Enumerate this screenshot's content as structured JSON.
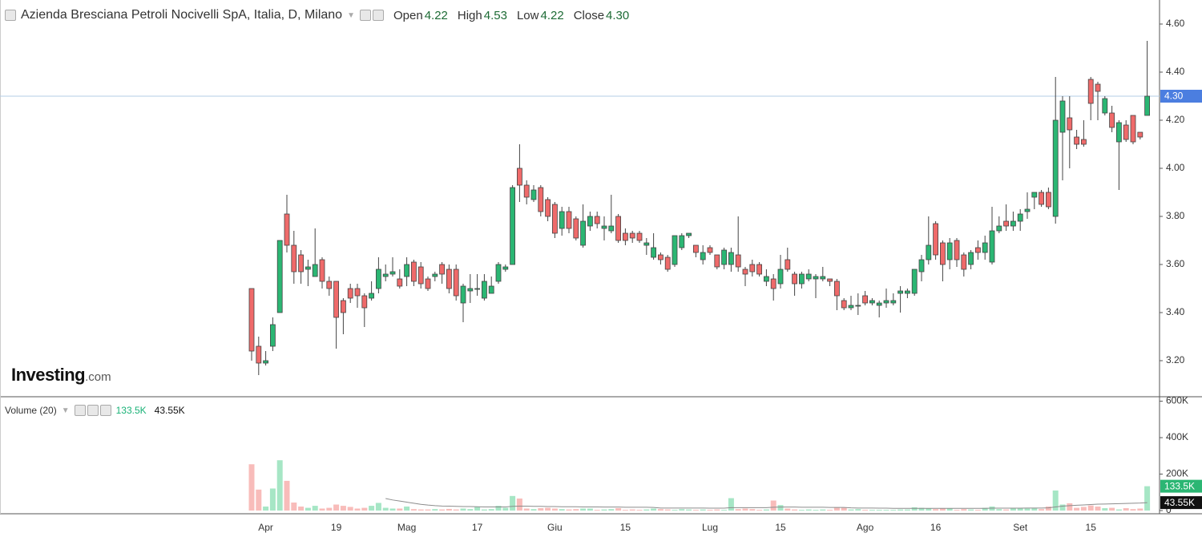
{
  "chart_data": {
    "type": "candlestick",
    "title": "Azienda Bresciana Petroli Nocivelli SpA, Italia, D, Milano",
    "ohlc_labels": [
      "Open",
      "High",
      "Low",
      "Close"
    ],
    "ohlc_values": [
      {
        "value": 4.22,
        "label": "4.22"
      },
      {
        "value": 4.53,
        "label": "4.53"
      },
      {
        "value": 4.22,
        "label": "4.22"
      },
      {
        "value": 4.3,
        "label": "4.30"
      }
    ],
    "watermark": "Investing",
    "watermark_suffix": ".com",
    "categories": [
      null,
      null,
      "Apr",
      null,
      null,
      null,
      null,
      null,
      null,
      null,
      null,
      null,
      "19",
      null,
      null,
      null,
      null,
      null,
      null,
      null,
      null,
      null,
      "Mag",
      null,
      null,
      null,
      null,
      null,
      null,
      null,
      null,
      null,
      "17",
      null,
      null,
      null,
      null,
      null,
      null,
      null,
      null,
      null,
      null,
      "Giu",
      null,
      null,
      null,
      null,
      null,
      null,
      null,
      null,
      null,
      "15",
      null,
      null,
      null,
      null,
      null,
      null,
      null,
      null,
      null,
      null,
      null,
      "Lug",
      null,
      null,
      null,
      null,
      null,
      null,
      null,
      null,
      null,
      "15",
      null,
      null,
      null,
      null,
      null,
      null,
      null,
      null,
      null,
      null,
      null,
      "Ago",
      null,
      null,
      null,
      null,
      null,
      null,
      null,
      null,
      null,
      "16",
      null,
      null,
      null,
      null,
      null,
      null,
      null,
      null,
      null,
      null,
      null,
      "Set",
      null,
      null,
      null,
      null,
      null,
      null,
      null,
      null,
      null,
      "15",
      null,
      null,
      null,
      null,
      null,
      null,
      null,
      null
    ],
    "open": [
      3.5,
      3.26,
      3.19,
      3.26,
      3.4,
      3.81,
      3.68,
      3.64,
      3.58,
      3.55,
      3.62,
      3.53,
      3.53,
      3.45,
      3.5,
      3.5,
      3.47,
      3.46,
      3.5,
      3.55,
      3.56,
      3.54,
      3.55,
      3.61,
      3.59,
      3.54,
      3.55,
      3.6,
      3.58,
      3.58,
      3.44,
      3.49,
      3.5,
      3.46,
      3.48,
      3.53,
      3.58,
      3.6,
      4.0,
      3.93,
      3.87,
      3.92,
      3.87,
      3.85,
      3.75,
      3.82,
      3.79,
      3.68,
      3.76,
      3.8,
      3.75,
      3.74,
      3.8,
      3.73,
      3.73,
      3.73,
      3.68,
      3.63,
      3.64,
      3.63,
      3.6,
      3.67,
      3.72,
      3.68,
      3.62,
      3.67,
      3.64,
      3.6,
      3.6,
      3.64,
      3.58,
      3.6,
      3.6,
      3.53,
      3.54,
      3.52,
      3.62,
      3.56,
      3.52,
      3.54,
      3.54,
      3.54,
      3.54,
      3.53,
      3.45,
      3.42,
      3.43,
      3.47,
      3.44,
      3.43,
      3.44,
      3.44,
      3.48,
      3.48,
      3.48,
      3.57,
      3.62,
      3.77,
      3.69,
      3.62,
      3.7,
      3.64,
      3.6,
      3.67,
      3.65,
      3.61,
      3.74,
      3.78,
      3.76,
      3.78,
      3.82,
      3.88,
      3.9,
      3.9,
      3.8,
      4.15,
      4.21,
      4.13,
      4.12,
      4.37,
      4.35,
      4.23,
      4.23,
      4.11,
      4.18,
      4.22,
      4.15,
      4.22
    ],
    "high": [
      3.5,
      3.3,
      3.24,
      3.38,
      3.7,
      3.89,
      3.74,
      3.66,
      3.62,
      3.75,
      3.63,
      3.55,
      3.53,
      3.46,
      3.52,
      3.52,
      3.48,
      3.53,
      3.63,
      3.6,
      3.63,
      3.58,
      3.63,
      3.62,
      3.61,
      3.55,
      3.57,
      3.61,
      3.6,
      3.6,
      3.52,
      3.56,
      3.56,
      3.56,
      3.55,
      3.61,
      3.6,
      3.93,
      4.1,
      3.95,
      3.93,
      3.93,
      3.88,
      3.86,
      3.84,
      3.84,
      3.8,
      3.85,
      3.82,
      3.82,
      3.8,
      3.89,
      3.81,
      3.75,
      3.74,
      3.74,
      3.71,
      3.73,
      3.65,
      3.64,
      3.72,
      3.73,
      3.73,
      3.68,
      3.68,
      3.68,
      3.64,
      3.67,
      3.67,
      3.8,
      3.59,
      3.62,
      3.61,
      3.58,
      3.56,
      3.64,
      3.67,
      3.57,
      3.57,
      3.58,
      3.56,
      3.59,
      3.54,
      3.54,
      3.46,
      3.47,
      3.48,
      3.49,
      3.46,
      3.45,
      3.5,
      3.48,
      3.51,
      3.5,
      3.58,
      3.64,
      3.8,
      3.78,
      3.7,
      3.71,
      3.71,
      3.65,
      3.66,
      3.7,
      3.72,
      3.84,
      3.8,
      3.85,
      3.82,
      3.83,
      3.9,
      3.9,
      3.91,
      3.92,
      4.38,
      4.3,
      4.3,
      4.16,
      4.2,
      4.38,
      4.36,
      4.3,
      4.26,
      4.2,
      4.2,
      4.22,
      4.15,
      4.53
    ],
    "low": [
      3.2,
      3.14,
      3.18,
      3.24,
      3.4,
      3.65,
      3.52,
      3.52,
      3.51,
      3.55,
      3.5,
      3.47,
      3.25,
      3.31,
      3.44,
      3.42,
      3.34,
      3.45,
      3.48,
      3.53,
      3.55,
      3.5,
      3.51,
      3.51,
      3.5,
      3.49,
      3.53,
      3.52,
      3.48,
      3.45,
      3.36,
      3.44,
      3.47,
      3.45,
      3.48,
      3.52,
      3.57,
      3.6,
      3.86,
      3.85,
      3.86,
      3.8,
      3.78,
      3.71,
      3.72,
      3.73,
      3.7,
      3.67,
      3.74,
      3.75,
      3.7,
      3.73,
      3.69,
      3.68,
      3.69,
      3.69,
      3.64,
      3.62,
      3.6,
      3.57,
      3.59,
      3.66,
      3.71,
      3.63,
      3.6,
      3.64,
      3.58,
      3.58,
      3.57,
      3.57,
      3.51,
      3.55,
      3.55,
      3.51,
      3.45,
      3.5,
      3.57,
      3.47,
      3.5,
      3.53,
      3.46,
      3.53,
      3.51,
      3.41,
      3.41,
      3.41,
      3.39,
      3.43,
      3.43,
      3.38,
      3.42,
      3.43,
      3.4,
      3.46,
      3.47,
      3.53,
      3.6,
      3.62,
      3.53,
      3.58,
      3.59,
      3.55,
      3.58,
      3.62,
      3.62,
      3.6,
      3.73,
      3.74,
      3.74,
      3.74,
      3.79,
      3.83,
      3.84,
      3.83,
      3.77,
      3.95,
      4.0,
      4.08,
      4.09,
      4.2,
      4.2,
      4.22,
      4.15,
      3.91,
      4.11,
      4.1,
      4.12,
      4.22
    ],
    "close": [
      3.24,
      3.19,
      3.2,
      3.35,
      3.7,
      3.68,
      3.57,
      3.57,
      3.59,
      3.6,
      3.53,
      3.5,
      3.38,
      3.4,
      3.46,
      3.47,
      3.42,
      3.48,
      3.58,
      3.56,
      3.57,
      3.51,
      3.6,
      3.53,
      3.52,
      3.5,
      3.56,
      3.56,
      3.5,
      3.47,
      3.51,
      3.5,
      3.5,
      3.53,
      3.51,
      3.6,
      3.59,
      3.92,
      3.93,
      3.88,
      3.91,
      3.82,
      3.8,
      3.73,
      3.82,
      3.75,
      3.71,
      3.78,
      3.8,
      3.77,
      3.76,
      3.76,
      3.7,
      3.7,
      3.71,
      3.7,
      3.69,
      3.67,
      3.62,
      3.58,
      3.72,
      3.72,
      3.73,
      3.65,
      3.65,
      3.65,
      3.59,
      3.66,
      3.65,
      3.59,
      3.56,
      3.57,
      3.56,
      3.55,
      3.5,
      3.58,
      3.58,
      3.52,
      3.56,
      3.56,
      3.55,
      3.55,
      3.53,
      3.47,
      3.42,
      3.43,
      3.43,
      3.44,
      3.45,
      3.44,
      3.45,
      3.45,
      3.49,
      3.49,
      3.58,
      3.62,
      3.68,
      3.64,
      3.6,
      3.69,
      3.62,
      3.58,
      3.65,
      3.65,
      3.69,
      3.74,
      3.76,
      3.76,
      3.78,
      3.81,
      3.83,
      3.9,
      3.85,
      3.84,
      4.2,
      4.28,
      4.16,
      4.1,
      4.1,
      4.27,
      4.32,
      4.29,
      4.17,
      4.19,
      4.12,
      4.11,
      4.13,
      4.3
    ],
    "volume": [
      254000,
      115000,
      22000,
      121000,
      276000,
      163000,
      44000,
      22000,
      15000,
      26000,
      11000,
      15000,
      33000,
      26000,
      20000,
      11000,
      15000,
      26000,
      42000,
      15000,
      11000,
      11000,
      22000,
      8000,
      6000,
      6000,
      8000,
      6000,
      9000,
      6000,
      11000,
      8000,
      20000,
      6000,
      8000,
      26000,
      15000,
      80000,
      66000,
      11000,
      8000,
      13000,
      15000,
      11000,
      8000,
      6000,
      8000,
      11000,
      11000,
      4000,
      6000,
      8000,
      13000,
      4000,
      6000,
      4000,
      6000,
      11000,
      8000,
      6000,
      4000,
      8000,
      6000,
      4000,
      6000,
      4000,
      6000,
      4000,
      68000,
      8000,
      11000,
      8000,
      4000,
      6000,
      55000,
      30000,
      11000,
      6000,
      4000,
      6000,
      4000,
      6000,
      4000,
      18000,
      15000,
      6000,
      8000,
      4000,
      4000,
      4000,
      4000,
      4000,
      6000,
      6000,
      18000,
      15000,
      13000,
      8000,
      11000,
      11000,
      4000,
      8000,
      6000,
      4000,
      15000,
      22000,
      8000,
      6000,
      11000,
      13000,
      11000,
      13000,
      8000,
      22000,
      110000,
      33000,
      40000,
      15000,
      20000,
      28000,
      22000,
      13000,
      15000,
      6000,
      13000,
      8000,
      11000,
      133500
    ],
    "volume_ma": [
      null,
      null,
      null,
      null,
      null,
      null,
      null,
      null,
      null,
      null,
      null,
      null,
      null,
      null,
      null,
      null,
      null,
      null,
      null,
      66000,
      58000,
      52000,
      46000,
      40000,
      34000,
      30000,
      27000,
      25000,
      24000,
      23000,
      22000,
      22000,
      21000,
      20000,
      20000,
      20000,
      20000,
      23000,
      24000,
      24000,
      23000,
      23000,
      22000,
      22000,
      21000,
      21000,
      21000,
      20000,
      20000,
      20000,
      19000,
      19000,
      19000,
      18000,
      18000,
      18000,
      18000,
      17000,
      14000,
      14000,
      14000,
      14000,
      14000,
      14000,
      14000,
      13000,
      13000,
      13000,
      16000,
      16000,
      16000,
      16000,
      16000,
      16000,
      18000,
      19000,
      19000,
      19000,
      18000,
      18000,
      18000,
      18000,
      17000,
      17000,
      17000,
      15000,
      14000,
      14000,
      14000,
      13000,
      13000,
      12000,
      12000,
      12000,
      12000,
      12000,
      12000,
      12000,
      12000,
      12000,
      12000,
      12000,
      12000,
      12000,
      12000,
      13000,
      13000,
      13000,
      13000,
      13000,
      14000,
      14000,
      14000,
      15000,
      20000,
      24000,
      27000,
      29000,
      31000,
      33000,
      35000,
      36000,
      37000,
      38000,
      39000,
      40000,
      41000,
      43550
    ],
    "ylim": [
      3.05,
      4.7
    ],
    "yticks": [
      {
        "value": 3.2,
        "label": "3.20"
      },
      {
        "value": 3.4,
        "label": "3.40"
      },
      {
        "value": 3.6,
        "label": "3.60"
      },
      {
        "value": 3.8,
        "label": "3.80"
      },
      {
        "value": 4,
        "label": "4.00"
      },
      {
        "value": 4.2,
        "label": "4.20"
      },
      {
        "value": 4.4,
        "label": "4.40"
      },
      {
        "value": 4.6,
        "label": "4.60"
      }
    ],
    "last_price": {
      "value": 4.3,
      "label": "4.30"
    },
    "volume_title": "Volume (20)",
    "volume_last": {
      "value": 133500,
      "label": "133.5K"
    },
    "volume_ma_last": {
      "value": 43550,
      "label": "43.55K"
    },
    "volume_ylim": [
      0,
      620000
    ],
    "volume_yticks": [
      0,
      {
        "value": 200000,
        "label": "200K"
      },
      {
        "value": 400000,
        "label": "400K"
      },
      {
        "value": 600000,
        "label": "600K"
      }
    ],
    "grid": false,
    "up_color": "#2bb673",
    "down_color": "#ef6a6a",
    "volume_up_color": "#a6e6c5",
    "volume_down_color": "#f8bcba",
    "ma_color": "#8c8c8c",
    "price_line_color": "#b3cde6",
    "price_label_color": "#4b7ee0",
    "volume_ma_label_color": "#111111"
  }
}
